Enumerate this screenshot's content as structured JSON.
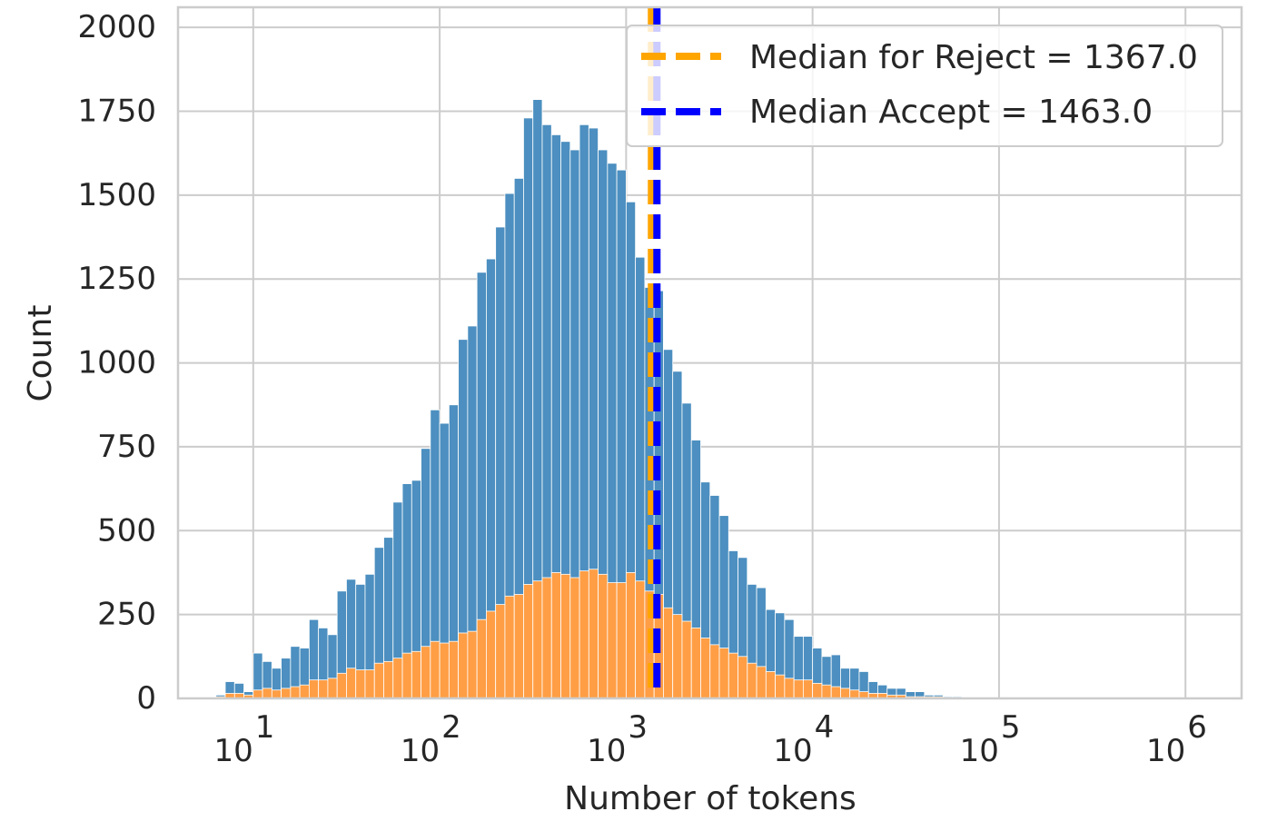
{
  "chart_data": {
    "type": "bar",
    "title": "",
    "xlabel": "Number of tokens",
    "ylabel": "Count",
    "xscale": "log",
    "xlim": [
      3.95,
      2000000
    ],
    "ylim": [
      0,
      2060
    ],
    "grid": true,
    "legend_position": "top-right",
    "x_ticks": [
      {
        "value": 10,
        "base": "10",
        "exponent": "1"
      },
      {
        "value": 100,
        "base": "10",
        "exponent": "2"
      },
      {
        "value": 1000,
        "base": "10",
        "exponent": "3"
      },
      {
        "value": 10000,
        "base": "10",
        "exponent": "4"
      },
      {
        "value": 100000,
        "base": "10",
        "exponent": "5"
      },
      {
        "value": 1000000,
        "base": "10",
        "exponent": "6"
      }
    ],
    "y_ticks": [
      "0",
      "250",
      "500",
      "750",
      "1000",
      "1250",
      "1500",
      "1750",
      "2000"
    ],
    "bins": {
      "log10_start": 0.8,
      "log10_width": 0.05
    },
    "series": [
      {
        "name": "Accept",
        "color": "#4c8fc0",
        "values": [
          10,
          50,
          45,
          20,
          135,
          110,
          90,
          120,
          155,
          150,
          235,
          210,
          190,
          320,
          355,
          340,
          370,
          450,
          480,
          585,
          640,
          650,
          745,
          860,
          820,
          875,
          1070,
          1110,
          1270,
          1310,
          1405,
          1505,
          1550,
          1730,
          1785,
          1710,
          1680,
          1660,
          1635,
          1710,
          1700,
          1635,
          1595,
          1575,
          1480,
          1315,
          1225,
          1215,
          1040,
          975,
          880,
          770,
          645,
          605,
          545,
          440,
          420,
          340,
          330,
          265,
          255,
          235,
          185,
          185,
          150,
          125,
          130,
          90,
          90,
          80,
          50,
          40,
          30,
          30,
          20,
          20,
          10,
          10,
          5,
          5,
          3,
          2,
          1,
          1,
          1,
          0,
          0,
          0,
          0,
          0,
          0,
          0,
          0,
          0,
          0,
          0,
          0,
          0,
          0,
          0,
          0,
          0,
          0,
          0,
          0,
          0,
          0,
          0,
          0,
          0
        ]
      },
      {
        "name": "Reject",
        "color": "#ff9e45",
        "values": [
          5,
          15,
          15,
          10,
          25,
          30,
          25,
          30,
          35,
          40,
          55,
          55,
          60,
          75,
          90,
          85,
          85,
          105,
          110,
          120,
          135,
          140,
          155,
          170,
          165,
          170,
          195,
          200,
          235,
          260,
          280,
          305,
          310,
          340,
          350,
          360,
          375,
          370,
          360,
          380,
          385,
          370,
          345,
          345,
          375,
          350,
          320,
          310,
          270,
          250,
          230,
          210,
          180,
          160,
          150,
          135,
          125,
          105,
          95,
          80,
          70,
          60,
          55,
          55,
          45,
          40,
          35,
          30,
          25,
          20,
          15,
          15,
          10,
          10,
          5,
          5,
          5,
          5,
          2,
          2,
          1,
          1,
          0,
          0,
          0,
          0,
          0,
          0,
          0,
          0,
          0,
          0,
          0,
          0,
          0,
          0,
          0,
          0,
          0,
          0,
          0,
          0,
          0,
          0,
          0,
          0,
          0,
          0,
          0,
          0
        ]
      }
    ],
    "median_lines": [
      {
        "name": "Reject",
        "value": 1367.0,
        "color": "#ffa500",
        "legend_label": "Median for Reject = 1367.0"
      },
      {
        "name": "Accept",
        "value": 1463.0,
        "color": "#0000ff",
        "legend_label": "Median  Accept = 1463.0"
      }
    ]
  }
}
